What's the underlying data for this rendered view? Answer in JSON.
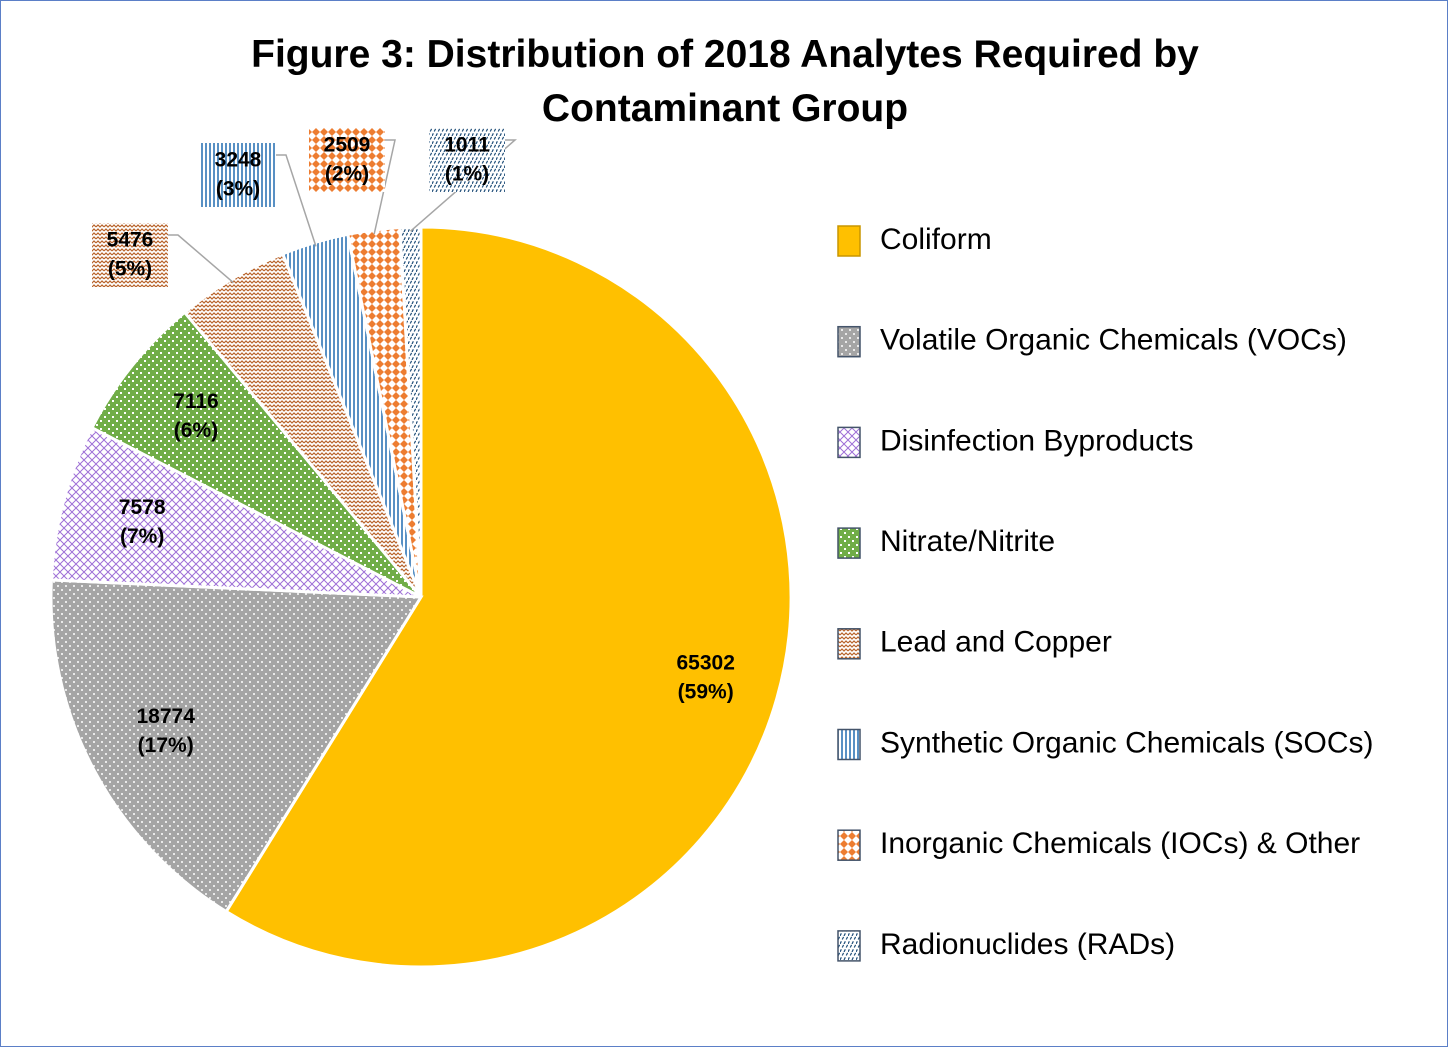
{
  "chart_data": {
    "type": "pie",
    "title": "Figure 3: Distribution of 2018 Analytes Required by Contaminant Group",
    "categories": [
      "Coliform",
      "Volatile Organic Chemicals (VOCs)",
      "Disinfection Byproducts",
      "Nitrate/Nitrite",
      "Lead and Copper",
      "Synthetic Organic Chemicals (SOCs)",
      "Inorganic Chemicals (IOCs) & Other",
      "Radionuclides (RADs)"
    ],
    "values": [
      65302,
      18774,
      7578,
      7116,
      5476,
      3248,
      2509,
      1011
    ],
    "percent_labels": [
      "(59%)",
      "(17%)",
      "(7%)",
      "(6%)",
      "(5%)",
      "(3%)",
      "(2%)",
      "(1%)"
    ],
    "colors": [
      "#ffc000",
      "#a5a5a5",
      "#9e6fd6",
      "#70ad47",
      "#b8632a",
      "#2e75b6",
      "#ed7d31",
      "#1f4e79"
    ],
    "legend": "right"
  }
}
